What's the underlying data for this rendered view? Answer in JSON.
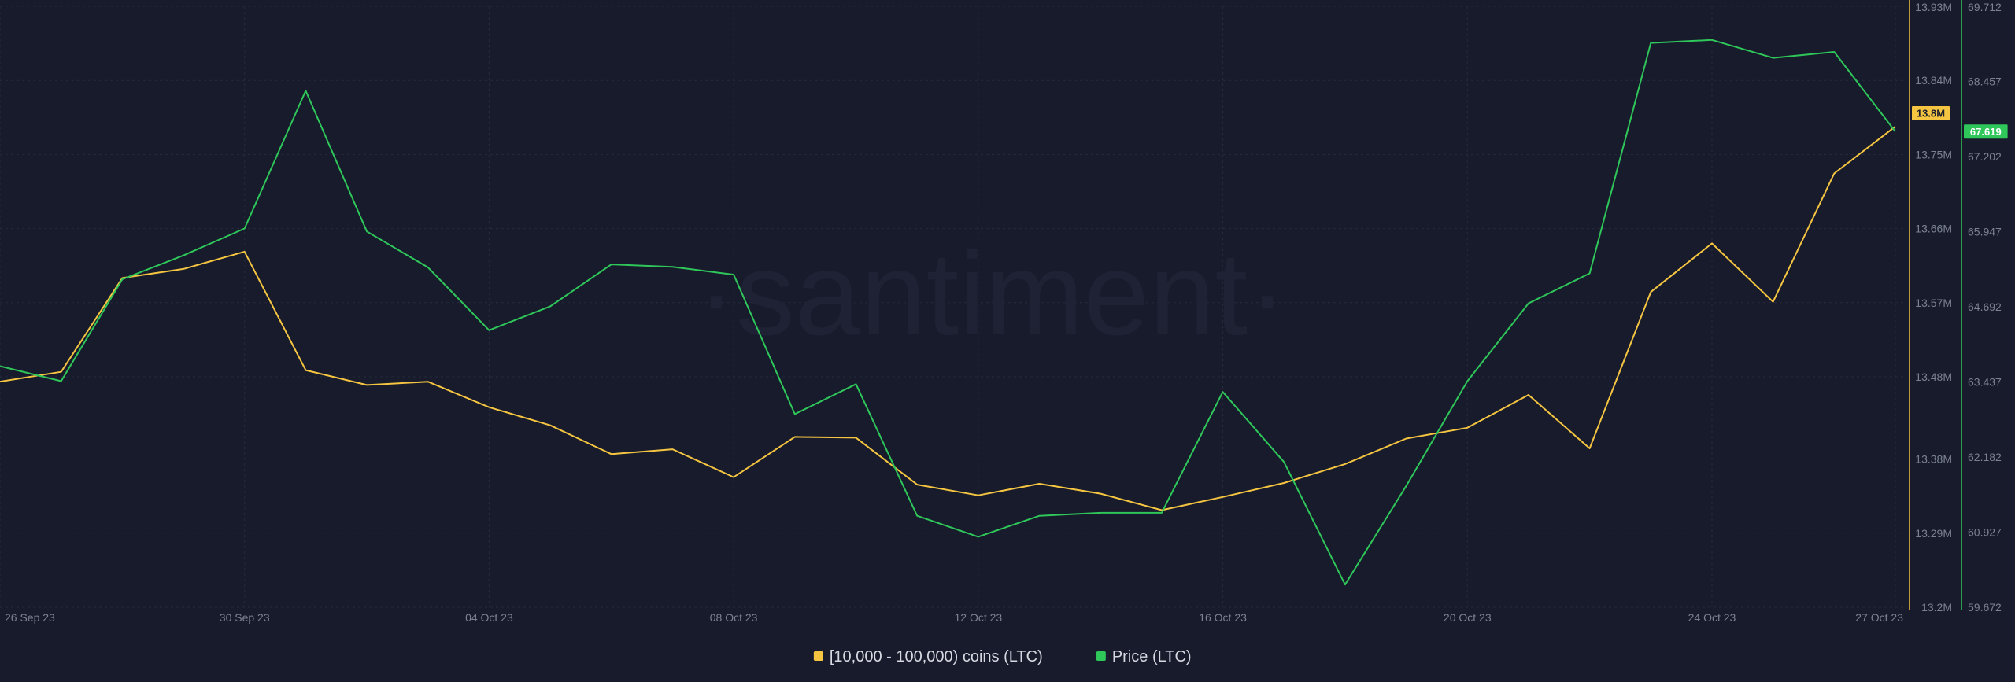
{
  "watermark": "·santiment·",
  "chart_data": {
    "type": "line",
    "x": [
      "26 Sep 23",
      "27 Sep 23",
      "28 Sep 23",
      "29 Sep 23",
      "30 Sep 23",
      "01 Oct 23",
      "02 Oct 23",
      "03 Oct 23",
      "04 Oct 23",
      "05 Oct 23",
      "06 Oct 23",
      "07 Oct 23",
      "08 Oct 23",
      "09 Oct 23",
      "10 Oct 23",
      "11 Oct 23",
      "12 Oct 23",
      "13 Oct 23",
      "14 Oct 23",
      "15 Oct 23",
      "16 Oct 23",
      "17 Oct 23",
      "18 Oct 23",
      "19 Oct 23",
      "20 Oct 23",
      "21 Oct 23",
      "22 Oct 23",
      "23 Oct 23",
      "24 Oct 23",
      "25 Oct 23",
      "26 Oct 23",
      "27 Oct 23"
    ],
    "x_tick_labels": [
      "26 Sep 23",
      "30 Sep 23",
      "04 Oct 23",
      "08 Oct 23",
      "12 Oct 23",
      "16 Oct 23",
      "20 Oct 23",
      "24 Oct 23",
      "27 Oct 23"
    ],
    "series": [
      {
        "name": "[10,000 - 100,000) coins (LTC)",
        "axis": "left",
        "color": "#f5c542",
        "values": [
          13.474,
          13.486,
          13.6,
          13.611,
          13.632,
          13.488,
          13.47,
          13.474,
          13.443,
          13.421,
          13.386,
          13.392,
          13.358,
          13.407,
          13.406,
          13.349,
          13.336,
          13.35,
          13.338,
          13.318,
          13.334,
          13.351,
          13.374,
          13.405,
          13.418,
          13.458,
          13.393,
          13.583,
          13.642,
          13.571,
          13.727,
          13.784
        ]
      },
      {
        "name": "Price (LTC)",
        "axis": "right",
        "color": "#2fc65a",
        "values": [
          63.7,
          63.45,
          65.15,
          65.55,
          66.0,
          68.3,
          65.95,
          65.35,
          64.3,
          64.7,
          65.4,
          65.36,
          65.23,
          62.9,
          63.4,
          61.2,
          60.85,
          61.2,
          61.25,
          61.25,
          63.27,
          62.1,
          60.05,
          61.7,
          63.45,
          64.75,
          65.25,
          69.1,
          69.15,
          68.85,
          68.95,
          67.619
        ]
      }
    ],
    "y_left": {
      "range": [
        13.2,
        13.93
      ],
      "tick_labels": [
        "13.93M",
        "13.84M",
        "13.75M",
        "13.66M",
        "13.57M",
        "13.48M",
        "13.38M",
        "13.29M",
        "13.2M"
      ],
      "tick_values": [
        13.93,
        13.84,
        13.75,
        13.66,
        13.57,
        13.48,
        13.38,
        13.29,
        13.2
      ],
      "current_label": "13.8M",
      "current_value": 13.8,
      "color": "#f5c542"
    },
    "y_right": {
      "range": [
        59.672,
        69.712
      ],
      "tick_labels": [
        "69.712",
        "68.457",
        "67.202",
        "65.947",
        "64.692",
        "63.437",
        "62.182",
        "60.927",
        "59.672"
      ],
      "tick_values": [
        69.712,
        68.457,
        67.202,
        65.947,
        64.692,
        63.437,
        62.182,
        60.927,
        59.672
      ],
      "current_label": "67.619",
      "current_value": 67.619,
      "color": "#2fc65a"
    },
    "grid": true,
    "legend_position": "bottom-center",
    "legend": [
      {
        "label": "[10,000 - 100,000) coins (LTC)",
        "color": "#f5c542"
      },
      {
        "label": "Price (LTC)",
        "color": "#2fc65a"
      }
    ]
  }
}
